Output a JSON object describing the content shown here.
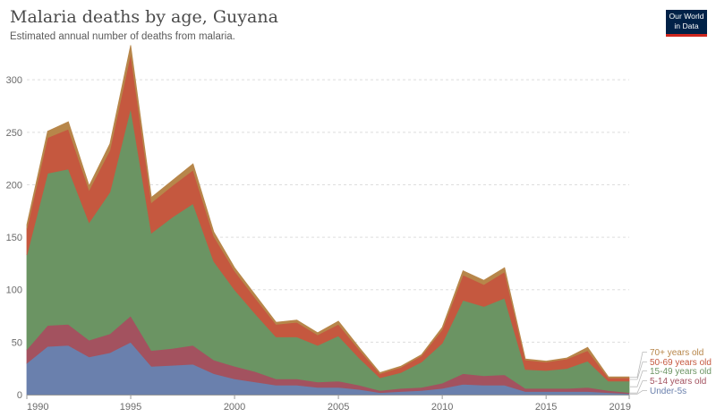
{
  "title": "Malaria deaths by age, Guyana",
  "subtitle": "Estimated annual number of deaths from malaria.",
  "logo": {
    "line1": "Our World",
    "line2": "in Data"
  },
  "colors": {
    "under5": "#6a80ad",
    "age5_14": "#a3525f",
    "age15_49": "#6b9463",
    "age50_69": "#c5583f",
    "age70": "#b7864a",
    "grid": "#dddddd",
    "axis": "#999999"
  },
  "chart_data": {
    "type": "area",
    "stacked": true,
    "x": [
      1990,
      1991,
      1992,
      1993,
      1994,
      1995,
      1996,
      1997,
      1998,
      1999,
      2000,
      2001,
      2002,
      2003,
      2004,
      2005,
      2006,
      2007,
      2008,
      2009,
      2010,
      2011,
      2012,
      2013,
      2014,
      2015,
      2016,
      2017,
      2018,
      2019
    ],
    "series": [
      {
        "name": "Under-5s",
        "key": "under5",
        "values": [
          30,
          46,
          47,
          36,
          40,
          50,
          27,
          28,
          29,
          20,
          15,
          12,
          9,
          9,
          7,
          7,
          5,
          2,
          3,
          4,
          6,
          10,
          9,
          9,
          3,
          3,
          3,
          3,
          2,
          1
        ]
      },
      {
        "name": "5-14 years old",
        "key": "age5_14",
        "values": [
          13,
          20,
          20,
          16,
          18,
          25,
          15,
          16,
          18,
          13,
          12,
          10,
          6,
          6,
          5,
          6,
          4,
          2,
          3,
          3,
          5,
          10,
          9,
          10,
          3,
          3,
          3,
          4,
          2,
          1
        ]
      },
      {
        "name": "15-49 years old",
        "key": "age15_49",
        "values": [
          90,
          145,
          148,
          112,
          135,
          198,
          112,
          125,
          135,
          94,
          73,
          55,
          40,
          40,
          35,
          43,
          26,
          12,
          15,
          24,
          38,
          70,
          66,
          73,
          18,
          17,
          19,
          25,
          9,
          11
        ]
      },
      {
        "name": "50-69 years old",
        "key": "age50_69",
        "values": [
          25,
          34,
          38,
          31,
          40,
          52,
          29,
          30,
          32,
          24,
          18,
          15,
          12,
          14,
          10,
          11,
          8,
          4,
          5,
          6,
          13,
          24,
          21,
          25,
          9,
          8,
          9,
          10,
          3,
          3
        ]
      },
      {
        "name": "70+ years old",
        "key": "age70",
        "values": [
          4,
          6,
          7,
          4,
          6,
          8,
          5,
          5,
          6,
          4,
          3,
          3,
          2,
          2,
          2,
          3,
          2,
          1,
          1,
          1,
          2,
          4,
          4,
          4,
          1,
          1,
          1,
          3,
          1,
          1
        ]
      }
    ],
    "ylim": [
      0,
      330
    ],
    "yticks": [
      0,
      50,
      100,
      150,
      200,
      250,
      300
    ],
    "xticks": [
      1990,
      1995,
      2000,
      2005,
      2010,
      2015,
      2019
    ],
    "grid": true,
    "legend": "right, inline labels at end of series"
  }
}
